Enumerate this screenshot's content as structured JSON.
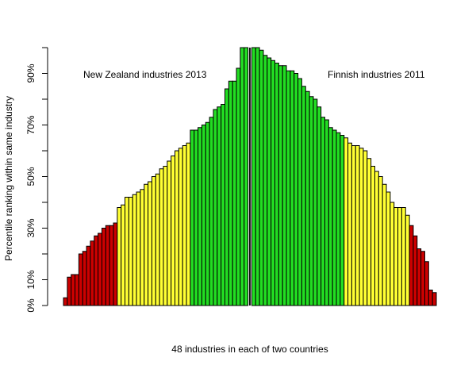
{
  "chart_data": {
    "type": "bar",
    "xlabel": "48 industries in each of two countries",
    "ylabel": "Percentile ranking within same industry",
    "annotations": [
      "New Zealand industries 2013",
      "Finnish industries 2011"
    ],
    "ylim": [
      0,
      100
    ],
    "yticks": [
      {
        "value": 0,
        "label": "0%"
      },
      {
        "value": 10,
        "label": "10%"
      },
      {
        "value": 30,
        "label": "30%"
      },
      {
        "value": 50,
        "label": "50%"
      },
      {
        "value": 70,
        "label": "70%"
      },
      {
        "value": 90,
        "label": "90%"
      }
    ],
    "minor_yticks": [
      20,
      40,
      60,
      80,
      100
    ],
    "series": [
      {
        "values": [
          3,
          11,
          12,
          12,
          20,
          21,
          23,
          25,
          27,
          28,
          30,
          31,
          31,
          32,
          38,
          39,
          42,
          42,
          43,
          44,
          45,
          47,
          48,
          50,
          51,
          53,
          54,
          56,
          58,
          60,
          61,
          62,
          63,
          68,
          68,
          69,
          70,
          71,
          73,
          76,
          77,
          78,
          84,
          87,
          87,
          92,
          100,
          100
        ],
        "colors": [
          "#cc0000",
          "#cc0000",
          "#cc0000",
          "#cc0000",
          "#cc0000",
          "#cc0000",
          "#cc0000",
          "#cc0000",
          "#cc0000",
          "#cc0000",
          "#cc0000",
          "#cc0000",
          "#cc0000",
          "#cc0000",
          "#ffff33",
          "#ffff33",
          "#ffff33",
          "#ffff33",
          "#ffff33",
          "#ffff33",
          "#ffff33",
          "#ffff33",
          "#ffff33",
          "#ffff33",
          "#ffff33",
          "#ffff33",
          "#ffff33",
          "#ffff33",
          "#ffff33",
          "#ffff33",
          "#ffff33",
          "#ffff33",
          "#ffff33",
          "#22dd22",
          "#22dd22",
          "#22dd22",
          "#22dd22",
          "#22dd22",
          "#22dd22",
          "#22dd22",
          "#22dd22",
          "#22dd22",
          "#22dd22",
          "#22dd22",
          "#22dd22",
          "#22dd22",
          "#22dd22",
          "#22dd22"
        ]
      },
      {
        "values": [
          100,
          100,
          99,
          97,
          96,
          95,
          94,
          93,
          93,
          91,
          91,
          90,
          88,
          85,
          83,
          81,
          80,
          77,
          73,
          72,
          69,
          68,
          67,
          66,
          65,
          63,
          62,
          62,
          61,
          60,
          57,
          54,
          52,
          50,
          47,
          44,
          40,
          38,
          38,
          38,
          35,
          31,
          27,
          22,
          21,
          17,
          6,
          5
        ],
        "colors": [
          "#22dd22",
          "#22dd22",
          "#22dd22",
          "#22dd22",
          "#22dd22",
          "#22dd22",
          "#22dd22",
          "#22dd22",
          "#22dd22",
          "#22dd22",
          "#22dd22",
          "#22dd22",
          "#22dd22",
          "#22dd22",
          "#22dd22",
          "#22dd22",
          "#22dd22",
          "#22dd22",
          "#22dd22",
          "#22dd22",
          "#22dd22",
          "#22dd22",
          "#22dd22",
          "#22dd22",
          "#ffff33",
          "#ffff33",
          "#ffff33",
          "#ffff33",
          "#ffff33",
          "#ffff33",
          "#ffff33",
          "#ffff33",
          "#ffff33",
          "#ffff33",
          "#ffff33",
          "#ffff33",
          "#ffff33",
          "#ffff33",
          "#ffff33",
          "#ffff33",
          "#ffff33",
          "#cc0000",
          "#cc0000",
          "#cc0000",
          "#cc0000",
          "#cc0000",
          "#cc0000",
          "#cc0000"
        ]
      }
    ],
    "divider": {
      "value": 100,
      "color": "#000000"
    }
  }
}
